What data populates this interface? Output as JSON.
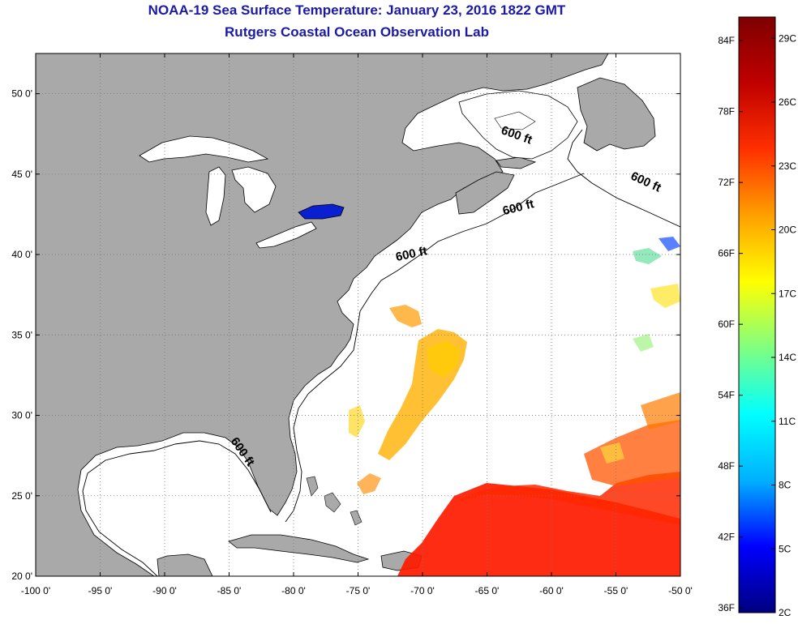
{
  "title": "NOAA-19 Sea Surface Temperature:  January 23, 2016 1822 GMT",
  "subtitle": "Rutgers Coastal Ocean Observation Lab",
  "map": {
    "lon_range": [
      -100,
      -50
    ],
    "lat_range": [
      20,
      52.5
    ],
    "lon_ticks": [
      {
        "value": -100,
        "label": "-100 0'"
      },
      {
        "value": -95,
        "label": "-95 0'"
      },
      {
        "value": -90,
        "label": "-90 0'"
      },
      {
        "value": -85,
        "label": "-85 0'"
      },
      {
        "value": -80,
        "label": "-80 0'"
      },
      {
        "value": -75,
        "label": "-75 0'"
      },
      {
        "value": -70,
        "label": "-70 0'"
      },
      {
        "value": -65,
        "label": "-65 0'"
      },
      {
        "value": -60,
        "label": "-60 0'"
      },
      {
        "value": -55,
        "label": "-55 0'"
      },
      {
        "value": -50,
        "label": "-50 0'"
      }
    ],
    "lat_ticks": [
      {
        "value": 50,
        "label": "50 0'"
      },
      {
        "value": 45,
        "label": "45 0'"
      },
      {
        "value": 40,
        "label": "40 0'"
      },
      {
        "value": 35,
        "label": "35 0'"
      },
      {
        "value": 30,
        "label": "30 0'"
      },
      {
        "value": 25,
        "label": "25 0'"
      },
      {
        "value": 20,
        "label": "20 0'"
      }
    ],
    "contour_labels": [
      {
        "text": "600 ft",
        "lon": -62.8,
        "lat": 47.2,
        "angle": 20
      },
      {
        "text": "600 ft",
        "lon": -52.8,
        "lat": 44.3,
        "angle": 25
      },
      {
        "text": "600 ft",
        "lon": -62.5,
        "lat": 42.7,
        "angle": -14
      },
      {
        "text": "600 ft",
        "lon": -70.8,
        "lat": 39.8,
        "angle": -12
      },
      {
        "text": "600 ft",
        "lon": -84.2,
        "lat": 27.6,
        "angle": 55
      }
    ],
    "colors": {
      "land": "#a9a9a9",
      "ocean": "#ffffff",
      "ontario": "#0a1fd0",
      "grid": "#777777"
    }
  },
  "colorbar": {
    "fahrenheit_ticks": [
      {
        "value": 84,
        "label": "84F"
      },
      {
        "value": 78,
        "label": "78F"
      },
      {
        "value": 72,
        "label": "72F"
      },
      {
        "value": 66,
        "label": "66F"
      },
      {
        "value": 60,
        "label": "60F"
      },
      {
        "value": 54,
        "label": "54F"
      },
      {
        "value": 48,
        "label": "48F"
      },
      {
        "value": 42,
        "label": "42F"
      },
      {
        "value": 36,
        "label": "36F"
      }
    ],
    "celsius_ticks": [
      {
        "value": 29,
        "label": "29C"
      },
      {
        "value": 26,
        "label": "26C"
      },
      {
        "value": 23,
        "label": "23C"
      },
      {
        "value": 20,
        "label": "20C"
      },
      {
        "value": 17,
        "label": "17C"
      },
      {
        "value": 14,
        "label": "14C"
      },
      {
        "value": 11,
        "label": "11C"
      },
      {
        "value": 8,
        "label": "8C"
      },
      {
        "value": 5,
        "label": "5C"
      },
      {
        "value": 2,
        "label": "2C"
      }
    ],
    "range_c": [
      2,
      30
    ],
    "stops": [
      "#00007f",
      "#0000ff",
      "#00b0ff",
      "#00ffff",
      "#80ff80",
      "#ffff00",
      "#ffa000",
      "#ff3000",
      "#c00000",
      "#7f0000"
    ]
  }
}
